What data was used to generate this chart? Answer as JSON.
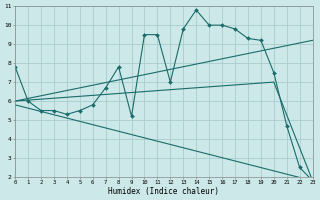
{
  "xlabel": "Humidex (Indice chaleur)",
  "xlim": [
    0,
    23
  ],
  "ylim": [
    2,
    11
  ],
  "yticks": [
    2,
    3,
    4,
    5,
    6,
    7,
    8,
    9,
    10,
    11
  ],
  "xticks": [
    0,
    1,
    2,
    3,
    4,
    5,
    6,
    7,
    8,
    9,
    10,
    11,
    12,
    13,
    14,
    15,
    16,
    17,
    18,
    19,
    20,
    21,
    22,
    23
  ],
  "background_color": "#cce8e8",
  "grid_color": "#aacccc",
  "line_color": "#1a6b6b",
  "lines": [
    {
      "x": [
        0,
        1,
        2,
        3,
        4,
        5,
        6,
        7,
        8,
        9,
        10,
        11,
        12,
        13,
        14,
        15,
        16,
        17,
        18,
        19,
        20,
        21,
        22,
        23
      ],
      "y": [
        7.8,
        6.0,
        5.5,
        5.5,
        5.3,
        5.5,
        5.8,
        6.7,
        7.8,
        5.2,
        9.5,
        9.5,
        7.0,
        9.8,
        10.8,
        10.0,
        10.0,
        9.8,
        9.3,
        9.2,
        7.5,
        4.7,
        2.5,
        1.8
      ],
      "marker": true
    },
    {
      "x": [
        0,
        23
      ],
      "y": [
        6.0,
        9.2
      ],
      "marker": false
    },
    {
      "x": [
        0,
        20,
        23
      ],
      "y": [
        6.0,
        7.0,
        1.8
      ],
      "marker": false
    },
    {
      "x": [
        0,
        23
      ],
      "y": [
        5.8,
        1.8
      ],
      "marker": false
    }
  ]
}
